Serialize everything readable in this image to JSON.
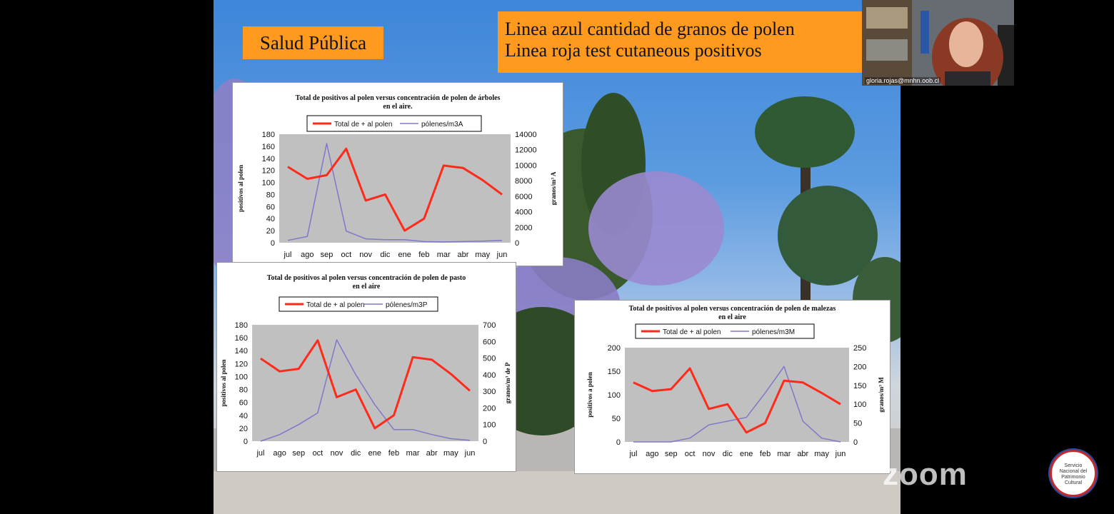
{
  "slide": {
    "title": "Salud Pública",
    "legend_line1": "Linea azul cantidad de granos de polen",
    "legend_line2": "Linea roja test cutaneous positivos"
  },
  "webcam": {
    "participant_name": "gloria.rojas@mnhn.oob.cl"
  },
  "zoom_watermark": "zoom",
  "logo_text": "Servicio Nacional del Patrimonio Cultural",
  "colors": {
    "red_series": "#ff2a1a",
    "blue_series": "#7e78c8",
    "plot_bg": "#c0c0c0",
    "label_orange": "#ff9a1f"
  },
  "chart_data": [
    {
      "type": "line",
      "title": "Total de positivos al polen versus concentración de polen de árboles en el aire.",
      "categories": [
        "jul",
        "ago",
        "sep",
        "oct",
        "nov",
        "dic",
        "ene",
        "feb",
        "mar",
        "abr",
        "may",
        "jun"
      ],
      "ylabel": "positivos al polen",
      "ylabel_right": "granos/m³ A",
      "ylim": [
        0,
        180
      ],
      "yticks": [
        0,
        20,
        40,
        60,
        80,
        100,
        120,
        140,
        160,
        180
      ],
      "ylim_right": [
        0,
        14000
      ],
      "yticks_right": [
        0,
        2000,
        4000,
        6000,
        8000,
        10000,
        12000,
        14000
      ],
      "series": [
        {
          "name": "Total de + al polen",
          "axis": "left",
          "color": "#ff2a1a",
          "values": [
            126,
            106,
            112,
            156,
            70,
            80,
            20,
            40,
            128,
            124,
            104,
            80
          ]
        },
        {
          "name": "pólenes/m3A",
          "axis": "right",
          "color": "#7e78c8",
          "values": [
            300,
            800,
            12800,
            1500,
            500,
            400,
            400,
            150,
            100,
            150,
            200,
            300
          ]
        }
      ]
    },
    {
      "type": "line",
      "title": "Total de positivos al polen versus concentración de polen de pasto en el aire",
      "categories": [
        "jul",
        "ago",
        "sep",
        "oct",
        "nov",
        "dic",
        "ene",
        "feb",
        "mar",
        "abr",
        "may",
        "jun"
      ],
      "ylabel": "positivos al polen",
      "ylabel_right": "granos/m³ de P",
      "ylim": [
        0,
        180
      ],
      "yticks": [
        0,
        20,
        40,
        60,
        80,
        100,
        120,
        140,
        160,
        180
      ],
      "ylim_right": [
        0,
        700
      ],
      "yticks_right": [
        0,
        100,
        200,
        300,
        400,
        500,
        600,
        700
      ],
      "series": [
        {
          "name": "Total de + al polen",
          "axis": "left",
          "color": "#ff2a1a",
          "values": [
            128,
            108,
            112,
            156,
            68,
            80,
            20,
            40,
            130,
            126,
            104,
            78
          ]
        },
        {
          "name": "pólenes/m3P",
          "axis": "right",
          "color": "#7e78c8",
          "values": [
            0,
            40,
            100,
            170,
            610,
            400,
            220,
            70,
            70,
            40,
            15,
            5
          ]
        }
      ]
    },
    {
      "type": "line",
      "title": "Total de positivos al polen versus concentración de polen de malezas en el aire",
      "categories": [
        "jul",
        "ago",
        "sep",
        "oct",
        "nov",
        "dic",
        "ene",
        "feb",
        "mar",
        "abr",
        "may",
        "jun"
      ],
      "ylabel": "positivos a polen",
      "ylabel_right": "granos/m³ M",
      "ylim": [
        0,
        200
      ],
      "yticks": [
        0,
        50,
        100,
        150,
        200
      ],
      "ylim_right": [
        0,
        250
      ],
      "yticks_right": [
        0,
        50,
        100,
        150,
        200,
        250
      ],
      "series": [
        {
          "name": "Total de + al polen",
          "axis": "left",
          "color": "#ff2a1a",
          "values": [
            126,
            108,
            112,
            156,
            70,
            80,
            20,
            40,
            130,
            126,
            104,
            80
          ]
        },
        {
          "name": "pólenes/m3M",
          "axis": "right",
          "color": "#7e78c8",
          "values": [
            0,
            0,
            0,
            10,
            45,
            55,
            65,
            130,
            200,
            55,
            10,
            0
          ]
        }
      ]
    }
  ]
}
